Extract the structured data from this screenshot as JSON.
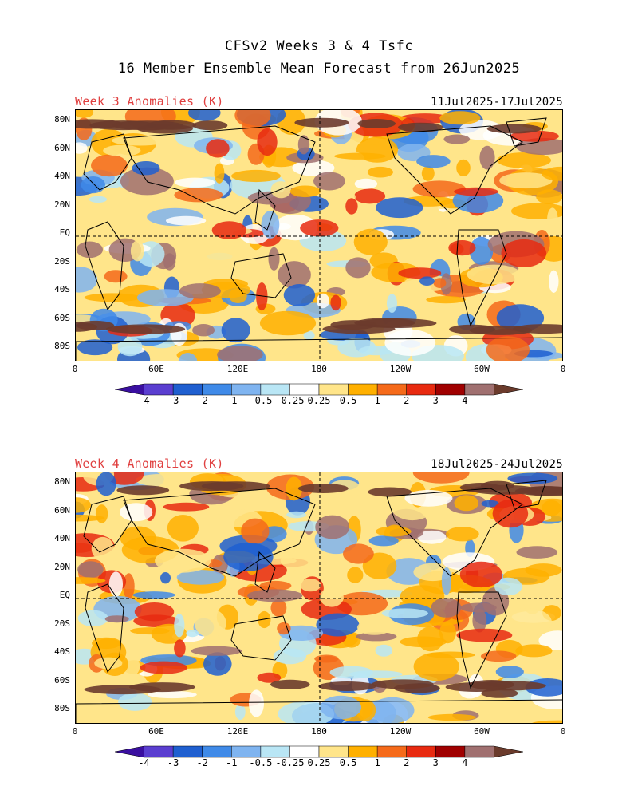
{
  "header": {
    "title_line1": "CFSv2 Weeks 3 & 4 Tsfc",
    "title_line2": "16 Member Ensemble Mean Forecast from 26Jun2025"
  },
  "panels": [
    {
      "title": "Week 3 Anomalies (K)",
      "dates": "11Jul2025-17Jul2025"
    },
    {
      "title": "Week 4 Anomalies (K)",
      "dates": "18Jul2025-24Jul2025"
    }
  ],
  "lat_labels": [
    "80N",
    "60N",
    "40N",
    "20N",
    "EQ",
    "20S",
    "40S",
    "60S",
    "80S"
  ],
  "lon_labels": [
    "0",
    "60E",
    "120E",
    "180",
    "120W",
    "60W",
    "0"
  ],
  "colorbar": {
    "labels": [
      "-4",
      "-3",
      "-2",
      "-1",
      "-0.5",
      "-0.25",
      "0.25",
      "0.5",
      "1",
      "2",
      "3",
      "4"
    ],
    "colors": [
      "#3a0fa0",
      "#5a3ed0",
      "#1f5fd0",
      "#3f8ae8",
      "#7fb4f0",
      "#b9e6f5",
      "#ffffff",
      "#ffe58a",
      "#ffb000",
      "#f56a1a",
      "#e82a10",
      "#a00000",
      "#a07070",
      "#6b3b2c"
    ]
  },
  "colors": {
    "warm": "#ff9a00",
    "hot": "#e8300f",
    "cold": "#3f8ae8",
    "title_red": "#e04040"
  }
}
